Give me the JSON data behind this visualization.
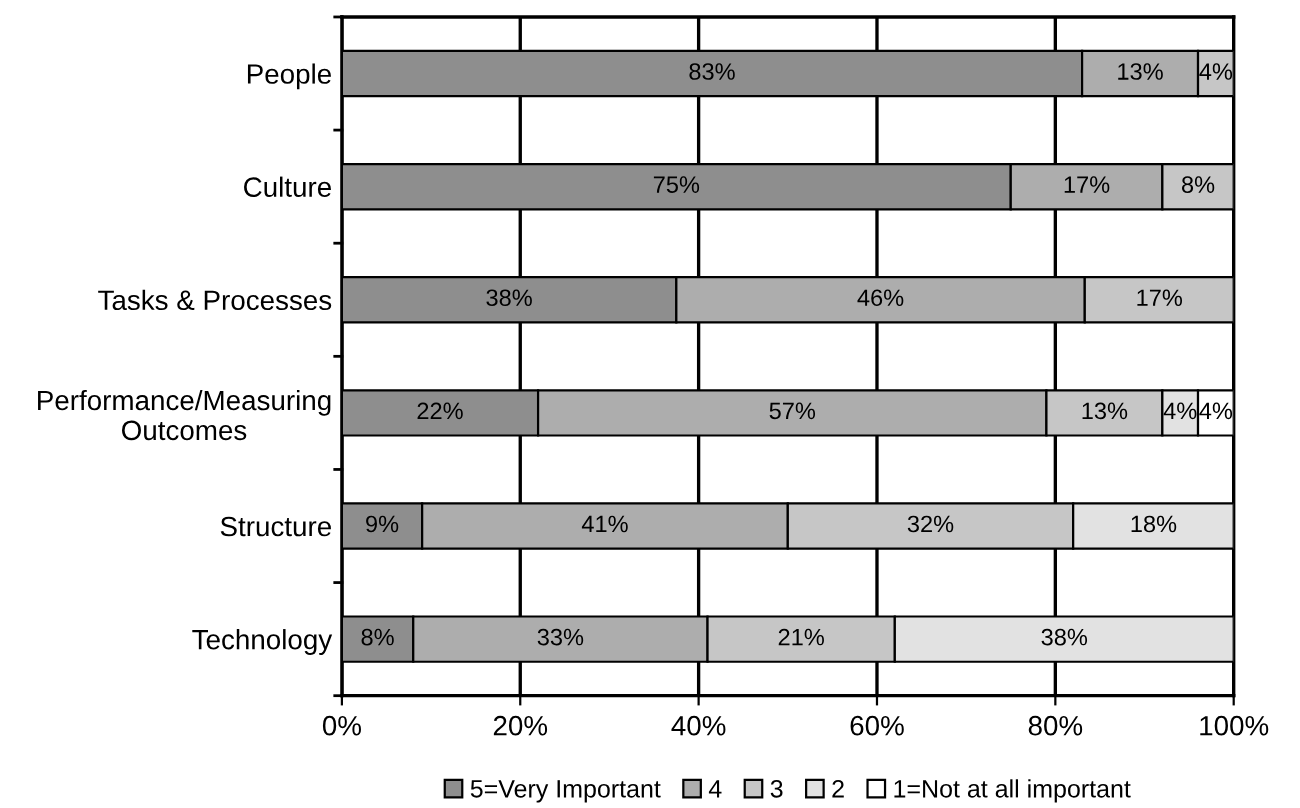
{
  "chart_data": {
    "type": "bar",
    "orientation": "horizontal",
    "stacked": true,
    "grid": "x",
    "legend": "bottom",
    "categories": [
      "People",
      "Culture",
      "Tasks & Processes",
      "Performance/Measuring\nOutcomes",
      "Structure",
      "Technology"
    ],
    "series": [
      {
        "name": "5=Very Important",
        "color": "#8e8e8e",
        "values": [
          83,
          75,
          37.5,
          22,
          9,
          8
        ],
        "value_labels": [
          "83%",
          "75%",
          "38%",
          "22%",
          "9%",
          "8%"
        ]
      },
      {
        "name": "4",
        "color": "#adadad",
        "values": [
          13,
          17,
          45.8,
          57,
          41,
          33
        ],
        "value_labels": [
          "13%",
          "17%",
          "46%",
          "57%",
          "41%",
          "33%"
        ]
      },
      {
        "name": "3",
        "color": "#c6c6c6",
        "values": [
          4,
          8,
          16.7,
          13,
          32,
          21
        ],
        "value_labels": [
          "4%",
          "8%",
          "17%",
          "13%",
          "32%",
          "21%"
        ]
      },
      {
        "name": "2",
        "color": "#e2e2e2",
        "values": [
          null,
          null,
          null,
          4,
          18,
          38
        ],
        "value_labels": [
          null,
          null,
          null,
          "4%",
          "18%",
          "38%"
        ]
      },
      {
        "name": "1=Not at all important",
        "color": "#ffffff",
        "values": [
          null,
          null,
          null,
          4,
          null,
          null
        ],
        "value_labels": [
          null,
          null,
          null,
          "4%",
          null,
          null
        ]
      }
    ],
    "xlim": [
      0,
      100
    ],
    "xticks": [
      {
        "value": 0,
        "label": "0%"
      },
      {
        "value": 20,
        "label": "20%"
      },
      {
        "value": 40,
        "label": "40%"
      },
      {
        "value": 60,
        "label": "60%"
      },
      {
        "value": 80,
        "label": "80%"
      },
      {
        "value": 100,
        "label": "100%"
      }
    ]
  }
}
